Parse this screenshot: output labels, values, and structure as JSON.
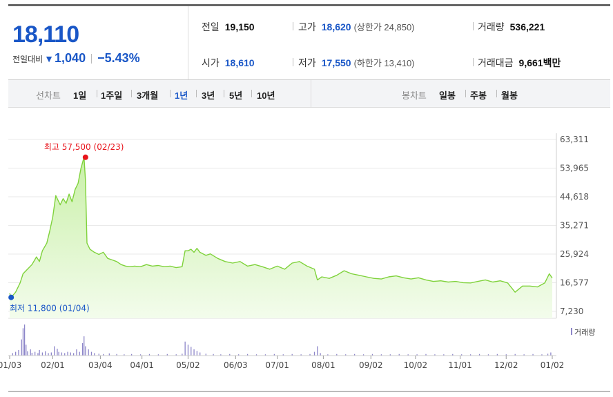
{
  "quote": {
    "price": "18,110",
    "change_label": "전일대비",
    "change_arrow": "▼",
    "change_value": "1,040",
    "change_pct": "−5.43%"
  },
  "stats": {
    "prev_close": {
      "label": "전일",
      "value": "19,150"
    },
    "high": {
      "label": "고가",
      "value": "18,620",
      "sub": "(상한가 24,850)"
    },
    "volume": {
      "label": "거래량",
      "value": "536,221"
    },
    "open": {
      "label": "시가",
      "value": "18,610"
    },
    "low": {
      "label": "저가",
      "value": "17,550",
      "sub": "(하한가 13,410)"
    },
    "trade_value": {
      "label": "거래대금",
      "value": "9,661",
      "unit": "백만"
    }
  },
  "toolbar": {
    "line_chart_label": "선차트",
    "periods": [
      "1일",
      "1주일",
      "3개월",
      "1년",
      "3년",
      "5년",
      "10년"
    ],
    "active_period": "1년",
    "candle_chart_label": "봉차트",
    "candle_periods": [
      "일봉",
      "주봉",
      "월봉"
    ]
  },
  "colors": {
    "accent": "#1a57c7",
    "line": "#7fd23b",
    "fill_top": "#c9f0a8",
    "fill_bottom": "#f3fcec",
    "max_marker": "#e8141c",
    "min_marker": "#1a57c7",
    "volume_bar": "#8d86c9"
  },
  "chart_data": [
    {
      "type": "area",
      "y_ticks": [
        "63,311",
        "53,965",
        "44,618",
        "35,271",
        "25,924",
        "16,577",
        "7,230"
      ],
      "ylim": [
        7230,
        63311
      ],
      "x_ticks": [
        "01/03",
        "02/01",
        "03/04",
        "04/01",
        "05/02",
        "06/03",
        "07/01",
        "08/01",
        "09/02",
        "10/02",
        "11/01",
        "12/02",
        "01/02"
      ],
      "x_tick_days": [
        0,
        29,
        61,
        89,
        120,
        152,
        180,
        211,
        243,
        273,
        303,
        334,
        365
      ],
      "max_annotation": {
        "text": "최고 57,500 (02/23)",
        "day": 51,
        "value": 57500
      },
      "min_annotation": {
        "text": "최저 11,800 (01/04)",
        "day": 1,
        "value": 11800
      },
      "series": [
        {
          "days": [
            0,
            1,
            4,
            7,
            9,
            12,
            15,
            18,
            20,
            22,
            25,
            27,
            29,
            31,
            34,
            36,
            38,
            40,
            42,
            44,
            46,
            48,
            50,
            51,
            52,
            54,
            57,
            60,
            63,
            66,
            69,
            72,
            75,
            78,
            81,
            84,
            88,
            92,
            96,
            100,
            104,
            108,
            112,
            116,
            118,
            120,
            122,
            124,
            126,
            128,
            132,
            135,
            140,
            145,
            150,
            155,
            160,
            165,
            170,
            175,
            180,
            185,
            190,
            195,
            200,
            205,
            207,
            210,
            215,
            220,
            225,
            230,
            235,
            240,
            245,
            250,
            255,
            260,
            265,
            270,
            275,
            280,
            285,
            290,
            295,
            300,
            305,
            310,
            315,
            320,
            325,
            330,
            335,
            340,
            345,
            350,
            355,
            360,
            363,
            365
          ],
          "values": [
            13100,
            11800,
            13500,
            16500,
            19500,
            21000,
            22500,
            25000,
            23500,
            27000,
            29500,
            33500,
            38000,
            45000,
            42000,
            44000,
            42500,
            45500,
            43000,
            47000,
            49000,
            54000,
            57500,
            50000,
            29500,
            27500,
            26500,
            25800,
            26500,
            24500,
            24000,
            23500,
            22500,
            22000,
            21800,
            22000,
            21800,
            22500,
            22000,
            22200,
            21800,
            22000,
            21500,
            21800,
            27000,
            27000,
            27500,
            26500,
            27800,
            26500,
            25500,
            26000,
            24500,
            23500,
            23000,
            23500,
            22000,
            22500,
            21800,
            21000,
            22000,
            21000,
            23000,
            23500,
            22000,
            21000,
            17500,
            18500,
            18000,
            19000,
            20500,
            19500,
            19000,
            18500,
            18000,
            17800,
            18500,
            18800,
            18200,
            17800,
            18200,
            17500,
            17000,
            17200,
            16800,
            17000,
            16600,
            16500,
            17000,
            17500,
            16800,
            17200,
            16500,
            13500,
            15500,
            15500,
            15200,
            16500,
            19500,
            18110
          ]
        }
      ]
    },
    {
      "type": "bar",
      "legend": "거래량",
      "bars": [
        {
          "day": 2,
          "value": 8
        },
        {
          "day": 4,
          "value": 12
        },
        {
          "day": 6,
          "value": 18
        },
        {
          "day": 8,
          "value": 52
        },
        {
          "day": 9,
          "value": 88
        },
        {
          "day": 10,
          "value": 100
        },
        {
          "day": 11,
          "value": 35
        },
        {
          "day": 12,
          "value": 14
        },
        {
          "day": 14,
          "value": 20
        },
        {
          "day": 15,
          "value": 9
        },
        {
          "day": 17,
          "value": 12
        },
        {
          "day": 19,
          "value": 8
        },
        {
          "day": 20,
          "value": 18
        },
        {
          "day": 22,
          "value": 10
        },
        {
          "day": 24,
          "value": 14
        },
        {
          "day": 26,
          "value": 8
        },
        {
          "day": 28,
          "value": 10
        },
        {
          "day": 30,
          "value": 30
        },
        {
          "day": 32,
          "value": 22
        },
        {
          "day": 33,
          "value": 12
        },
        {
          "day": 35,
          "value": 10
        },
        {
          "day": 37,
          "value": 8
        },
        {
          "day": 39,
          "value": 12
        },
        {
          "day": 41,
          "value": 10
        },
        {
          "day": 43,
          "value": 8
        },
        {
          "day": 45,
          "value": 20
        },
        {
          "day": 47,
          "value": 12
        },
        {
          "day": 49,
          "value": 40
        },
        {
          "day": 50,
          "value": 62
        },
        {
          "day": 51,
          "value": 30
        },
        {
          "day": 53,
          "value": 20
        },
        {
          "day": 55,
          "value": 12
        },
        {
          "day": 57,
          "value": 8
        },
        {
          "day": 60,
          "value": 6
        },
        {
          "day": 63,
          "value": 5
        },
        {
          "day": 67,
          "value": 7
        },
        {
          "day": 72,
          "value": 5
        },
        {
          "day": 77,
          "value": 4
        },
        {
          "day": 82,
          "value": 5
        },
        {
          "day": 88,
          "value": 4
        },
        {
          "day": 94,
          "value": 5
        },
        {
          "day": 100,
          "value": 4
        },
        {
          "day": 106,
          "value": 5
        },
        {
          "day": 112,
          "value": 4
        },
        {
          "day": 116,
          "value": 6
        },
        {
          "day": 118,
          "value": 45
        },
        {
          "day": 120,
          "value": 35
        },
        {
          "day": 122,
          "value": 28
        },
        {
          "day": 124,
          "value": 20
        },
        {
          "day": 126,
          "value": 15
        },
        {
          "day": 128,
          "value": 10
        },
        {
          "day": 132,
          "value": 6
        },
        {
          "day": 137,
          "value": 5
        },
        {
          "day": 142,
          "value": 4
        },
        {
          "day": 148,
          "value": 5
        },
        {
          "day": 154,
          "value": 4
        },
        {
          "day": 160,
          "value": 5
        },
        {
          "day": 166,
          "value": 4
        },
        {
          "day": 172,
          "value": 4
        },
        {
          "day": 178,
          "value": 5
        },
        {
          "day": 184,
          "value": 4
        },
        {
          "day": 190,
          "value": 5
        },
        {
          "day": 196,
          "value": 4
        },
        {
          "day": 202,
          "value": 5
        },
        {
          "day": 205,
          "value": 12
        },
        {
          "day": 207,
          "value": 30
        },
        {
          "day": 209,
          "value": 8
        },
        {
          "day": 214,
          "value": 4
        },
        {
          "day": 220,
          "value": 5
        },
        {
          "day": 226,
          "value": 4
        },
        {
          "day": 232,
          "value": 5
        },
        {
          "day": 238,
          "value": 4
        },
        {
          "day": 244,
          "value": 5
        },
        {
          "day": 250,
          "value": 4
        },
        {
          "day": 256,
          "value": 4
        },
        {
          "day": 262,
          "value": 5
        },
        {
          "day": 268,
          "value": 4
        },
        {
          "day": 274,
          "value": 4
        },
        {
          "day": 280,
          "value": 5
        },
        {
          "day": 286,
          "value": 4
        },
        {
          "day": 292,
          "value": 4
        },
        {
          "day": 298,
          "value": 5
        },
        {
          "day": 304,
          "value": 4
        },
        {
          "day": 310,
          "value": 4
        },
        {
          "day": 316,
          "value": 5
        },
        {
          "day": 322,
          "value": 4
        },
        {
          "day": 328,
          "value": 5
        },
        {
          "day": 334,
          "value": 4
        },
        {
          "day": 340,
          "value": 5
        },
        {
          "day": 346,
          "value": 4
        },
        {
          "day": 352,
          "value": 5
        },
        {
          "day": 358,
          "value": 4
        },
        {
          "day": 362,
          "value": 6
        },
        {
          "day": 364,
          "value": 10
        }
      ]
    }
  ]
}
